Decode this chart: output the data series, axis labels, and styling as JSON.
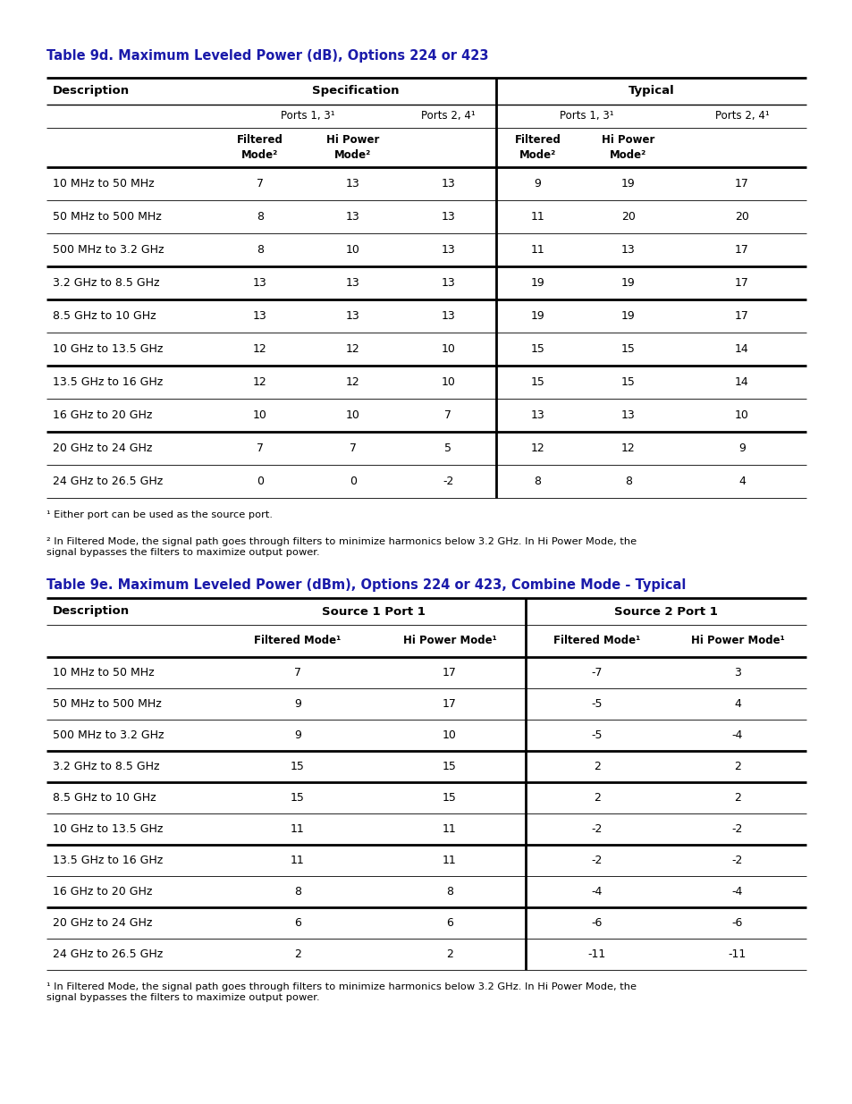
{
  "page_bg": "#ffffff",
  "title_color": "#1a1aaa",
  "table1_title": "Table 9d. Maximum Leveled Power (dB), Options 224 or 423",
  "table2_title": "Table 9e. Maximum Leveled Power (dBm), Options 224 or 423, Combine Mode - Typical",
  "table1_rows": [
    [
      "10 MHz to 50 MHz",
      "7",
      "13",
      "13",
      "9",
      "19",
      "17"
    ],
    [
      "50 MHz to 500 MHz",
      "8",
      "13",
      "13",
      "11",
      "20",
      "20"
    ],
    [
      "500 MHz to 3.2 GHz",
      "8",
      "10",
      "13",
      "11",
      "13",
      "17"
    ],
    [
      "3.2 GHz to 8.5 GHz",
      "13",
      "13",
      "13",
      "19",
      "19",
      "17"
    ],
    [
      "8.5 GHz to 10 GHz",
      "13",
      "13",
      "13",
      "19",
      "19",
      "17"
    ],
    [
      "10 GHz to 13.5 GHz",
      "12",
      "12",
      "10",
      "15",
      "15",
      "14"
    ],
    [
      "13.5 GHz to 16 GHz",
      "12",
      "12",
      "10",
      "15",
      "15",
      "14"
    ],
    [
      "16 GHz to 20 GHz",
      "10",
      "10",
      "7",
      "13",
      "13",
      "10"
    ],
    [
      "20 GHz to 24 GHz",
      "7",
      "7",
      "5",
      "12",
      "12",
      "9"
    ],
    [
      "24 GHz to 26.5 GHz",
      "0",
      "0",
      "-2",
      "8",
      "8",
      "4"
    ]
  ],
  "table1_footnote1": "¹ Either port can be used as the source port.",
  "table1_footnote2": "² In Filtered Mode, the signal path goes through filters to minimize harmonics below 3.2 GHz. In Hi Power Mode, the\nsignal bypasses the filters to maximize output power.",
  "table2_rows": [
    [
      "10 MHz to 50 MHz",
      "7",
      "17",
      "-7",
      "3"
    ],
    [
      "50 MHz to 500 MHz",
      "9",
      "17",
      "-5",
      "4"
    ],
    [
      "500 MHz to 3.2 GHz",
      "9",
      "10",
      "-5",
      "-4"
    ],
    [
      "3.2 GHz to 8.5 GHz",
      "15",
      "15",
      "2",
      "2"
    ],
    [
      "8.5 GHz to 10 GHz",
      "15",
      "15",
      "2",
      "2"
    ],
    [
      "10 GHz to 13.5 GHz",
      "11",
      "11",
      "-2",
      "-2"
    ],
    [
      "13.5 GHz to 16 GHz",
      "11",
      "11",
      "-2",
      "-2"
    ],
    [
      "16 GHz to 20 GHz",
      "8",
      "8",
      "-4",
      "-4"
    ],
    [
      "20 GHz to 24 GHz",
      "6",
      "6",
      "-6",
      "-6"
    ],
    [
      "24 GHz to 26.5 GHz",
      "2",
      "2",
      "-11",
      "-11"
    ]
  ],
  "table2_footnote": "¹ In Filtered Mode, the signal path goes through filters to minimize harmonics below 3.2 GHz. In Hi Power Mode, the\nsignal bypasses the filters to maximize output power.",
  "t1_thick_rows": [
    2,
    3,
    5,
    7
  ],
  "t2_thick_rows": [
    2,
    3,
    5,
    7
  ]
}
